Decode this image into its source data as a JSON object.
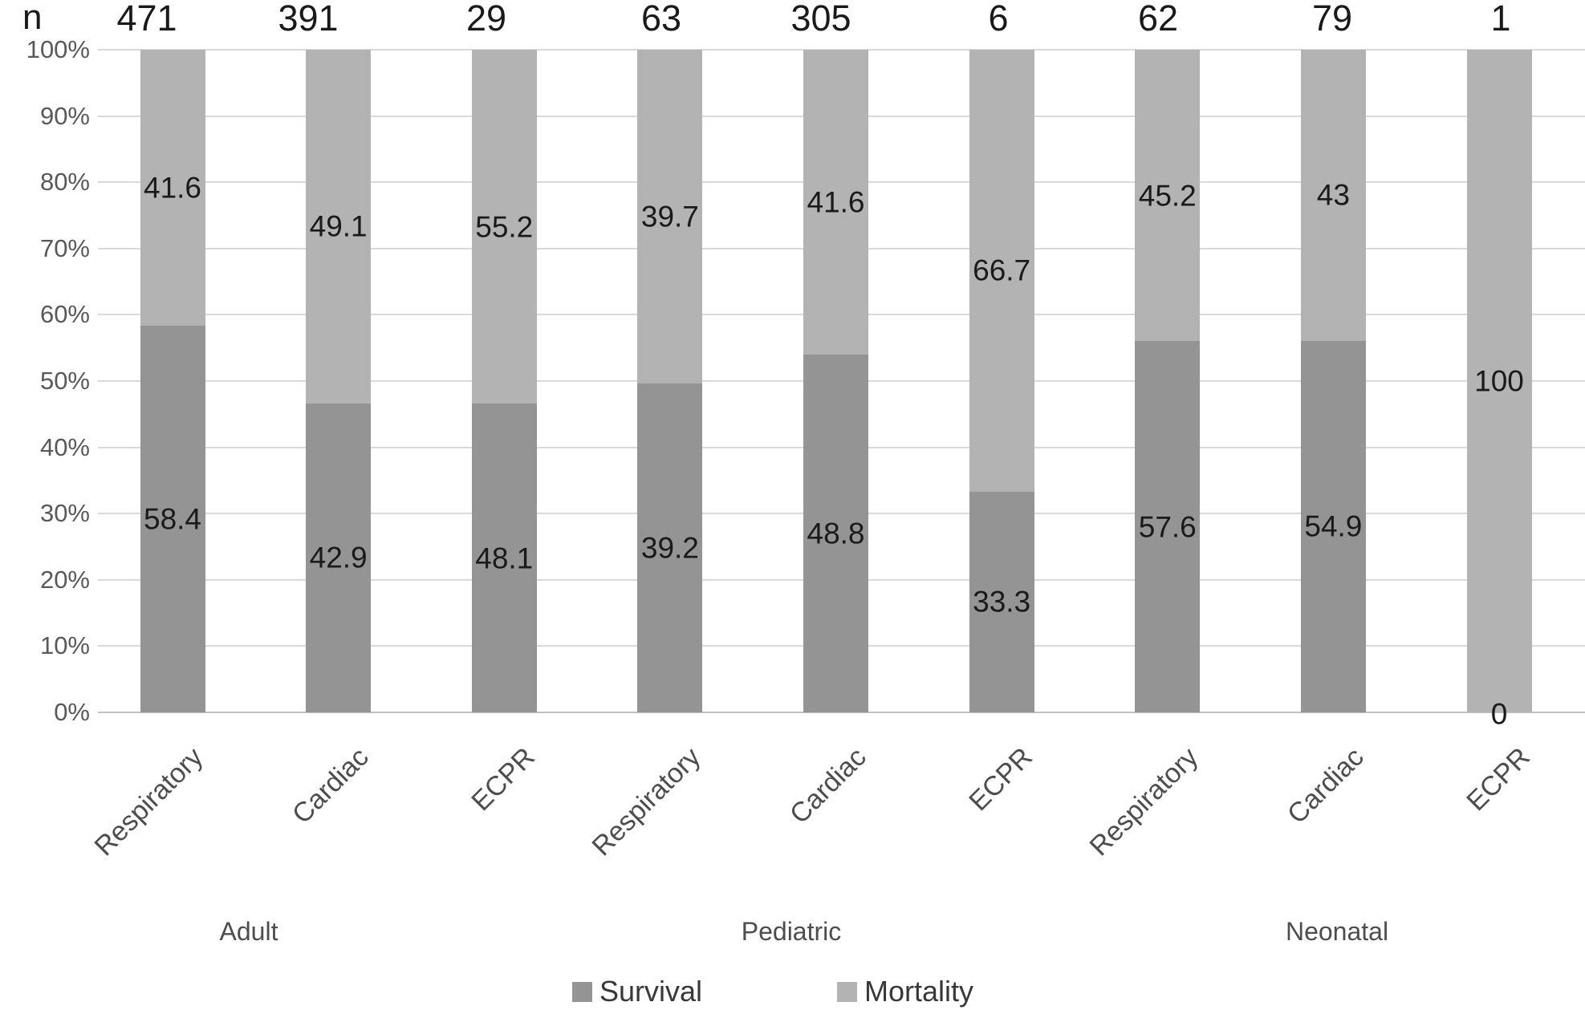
{
  "chart_data": {
    "type": "bar",
    "stacking": "percent",
    "orientation": "vertical",
    "title": "",
    "xlabel": "",
    "ylabel": "",
    "n_row_label": "n",
    "n_values": [
      471,
      391,
      29,
      63,
      305,
      6,
      62,
      79,
      1
    ],
    "categories": [
      "Respiratory",
      "Cardiac",
      "ECPR",
      "Respiratory",
      "Cardiac",
      "ECPR",
      "Respiratory",
      "Cardiac",
      "ECPR"
    ],
    "group_labels": [
      "Adult",
      "Pediatric",
      "Neonatal"
    ],
    "series": [
      {
        "name": "Survival",
        "color": "#949494",
        "values": [
          58.4,
          42.9,
          48.1,
          39.2,
          48.8,
          33.3,
          57.6,
          54.9,
          0
        ]
      },
      {
        "name": "Mortality",
        "color": "#b3b3b3",
        "values": [
          41.6,
          49.1,
          55.2,
          39.7,
          41.6,
          66.7,
          45.2,
          43,
          100
        ]
      }
    ],
    "y_ticks": [
      "0%",
      "10%",
      "20%",
      "30%",
      "40%",
      "50%",
      "60%",
      "70%",
      "80%",
      "90%",
      "100%"
    ],
    "ylim": [
      0,
      100
    ],
    "grid": true,
    "grid_color": "#d9d9d9",
    "legend_position": "bottom",
    "segment_note": "segments drawn normalized so survival+mortality fill 100%; labels show raw values"
  }
}
